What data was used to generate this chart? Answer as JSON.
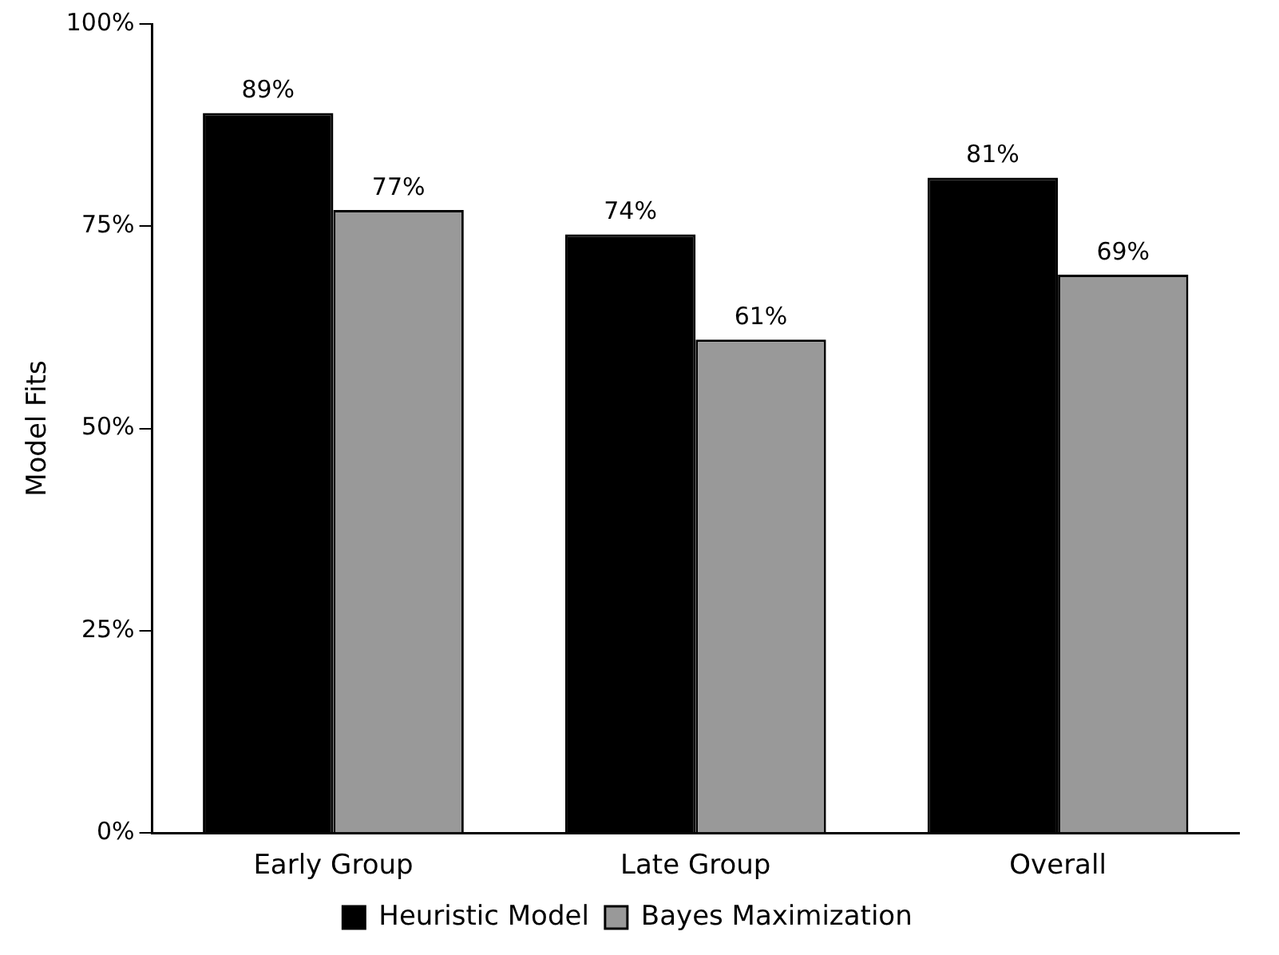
{
  "chart_data": {
    "type": "bar",
    "ylabel": "Model Fits",
    "categories": [
      "Early Group",
      "Late Group",
      "Overall"
    ],
    "series": [
      {
        "name": "Heuristic Model",
        "color": "#000000",
        "values": [
          89,
          74,
          81
        ],
        "value_labels": [
          "89%",
          "74%",
          "81%"
        ]
      },
      {
        "name": "Bayes Maximization",
        "color": "#999999",
        "values": [
          77,
          61,
          69
        ],
        "value_labels": [
          "77%",
          "61%",
          "69%"
        ]
      }
    ],
    "ylim": [
      0,
      100
    ],
    "yticks": [
      {
        "value": 0,
        "label": "0%"
      },
      {
        "value": 25,
        "label": "25%"
      },
      {
        "value": 50,
        "label": "50%"
      },
      {
        "value": 75,
        "label": "75%"
      },
      {
        "value": 100,
        "label": "100%"
      }
    ],
    "grid": false,
    "legend": "bottom"
  }
}
